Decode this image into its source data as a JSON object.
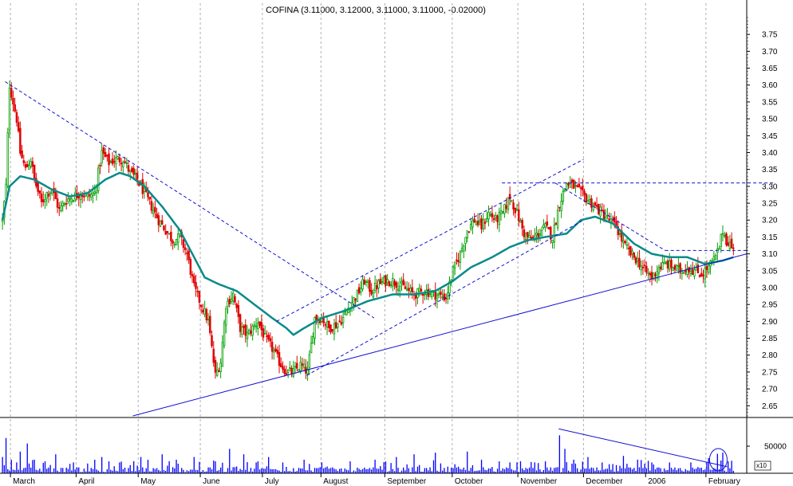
{
  "chart_data": [
    {
      "type": "candlestick",
      "title": "COFINA (3.11000, 3.12000, 3.11000, 3.11000, -0.02000)",
      "ylim": [
        2.62,
        3.8
      ],
      "y_ticks": [
        "3.75",
        "3.70",
        "3.65",
        "3.60",
        "3.55",
        "3.50",
        "3.45",
        "3.40",
        "3.35",
        "3.30",
        "3.25",
        "3.20",
        "3.15",
        "3.10",
        "3.05",
        "3.00",
        "2.95",
        "2.90",
        "2.85",
        "2.80",
        "2.75",
        "2.70",
        "2.65"
      ],
      "x_ticks": [
        "March",
        "April",
        "May",
        "June",
        "July",
        "August",
        "September",
        "October",
        "November",
        "December",
        "2006",
        "February"
      ],
      "grid": "vertical dashed at month boundaries",
      "colors": {
        "up": "#00a000",
        "down": "#e00000",
        "moving_average": "#0a8a8a",
        "trendline": "#1010d0",
        "volume": "#0000ff",
        "grid": "#b0b0b0"
      },
      "moving_average_anchors": [
        [
          0,
          3.2
        ],
        [
          4,
          3.3
        ],
        [
          10,
          3.33
        ],
        [
          18,
          3.32
        ],
        [
          28,
          3.29
        ],
        [
          38,
          3.27
        ],
        [
          48,
          3.28
        ],
        [
          58,
          3.32
        ],
        [
          66,
          3.34
        ],
        [
          72,
          3.33
        ],
        [
          80,
          3.3
        ],
        [
          90,
          3.24
        ],
        [
          100,
          3.17
        ],
        [
          108,
          3.09
        ],
        [
          114,
          3.03
        ],
        [
          122,
          3.01
        ],
        [
          132,
          2.99
        ],
        [
          142,
          2.95
        ],
        [
          152,
          2.91
        ],
        [
          160,
          2.88
        ],
        [
          164,
          2.86
        ],
        [
          170,
          2.88
        ],
        [
          180,
          2.91
        ],
        [
          192,
          2.93
        ],
        [
          206,
          2.96
        ],
        [
          220,
          2.98
        ],
        [
          232,
          2.98
        ],
        [
          244,
          2.99
        ],
        [
          254,
          3.02
        ],
        [
          264,
          3.06
        ],
        [
          276,
          3.09
        ],
        [
          286,
          3.12
        ],
        [
          296,
          3.14
        ],
        [
          306,
          3.15
        ],
        [
          318,
          3.16
        ],
        [
          326,
          3.2
        ],
        [
          334,
          3.21
        ],
        [
          344,
          3.19
        ],
        [
          356,
          3.13
        ],
        [
          366,
          3.1
        ],
        [
          376,
          3.09
        ],
        [
          386,
          3.09
        ],
        [
          396,
          3.07
        ],
        [
          406,
          3.08
        ],
        [
          412,
          3.09
        ]
      ],
      "trendlines": [
        {
          "style": "dashed",
          "from": [
            2,
            3.61
          ],
          "to": [
            210,
            2.91
          ]
        },
        {
          "style": "solid",
          "from": [
            74,
            2.62
          ],
          "to": [
            420,
            3.1
          ]
        },
        {
          "style": "dashed",
          "from": [
            155,
            2.9
          ],
          "to": [
            328,
            3.38
          ]
        },
        {
          "style": "dashed",
          "from": [
            172,
            2.74
          ],
          "to": [
            328,
            3.2
          ]
        },
        {
          "style": "dashed",
          "from": [
            282,
            3.31
          ],
          "to": [
            435,
            3.31
          ]
        },
        {
          "style": "dashed",
          "from": [
            312,
            3.31
          ],
          "to": [
            374,
            3.11
          ]
        },
        {
          "style": "dashed",
          "from": [
            374,
            3.11
          ],
          "to": [
            420,
            3.11
          ]
        }
      ],
      "price_path_anchors": [
        [
          0,
          3.2
        ],
        [
          2,
          3.3
        ],
        [
          4,
          3.6
        ],
        [
          6,
          3.55
        ],
        [
          8,
          3.5
        ],
        [
          10,
          3.4
        ],
        [
          13,
          3.35
        ],
        [
          16,
          3.38
        ],
        [
          18,
          3.32
        ],
        [
          22,
          3.25
        ],
        [
          25,
          3.28
        ],
        [
          28,
          3.29
        ],
        [
          32,
          3.23
        ],
        [
          36,
          3.26
        ],
        [
          40,
          3.27
        ],
        [
          44,
          3.28
        ],
        [
          48,
          3.27
        ],
        [
          52,
          3.28
        ],
        [
          56,
          3.4
        ],
        [
          60,
          3.37
        ],
        [
          64,
          3.38
        ],
        [
          68,
          3.38
        ],
        [
          72,
          3.34
        ],
        [
          76,
          3.32
        ],
        [
          80,
          3.28
        ],
        [
          84,
          3.24
        ],
        [
          88,
          3.2
        ],
        [
          92,
          3.17
        ],
        [
          96,
          3.14
        ],
        [
          100,
          3.15
        ],
        [
          104,
          3.1
        ],
        [
          108,
          3.0
        ],
        [
          112,
          2.95
        ],
        [
          116,
          2.9
        ],
        [
          118,
          2.82
        ],
        [
          120,
          2.74
        ],
        [
          123,
          2.78
        ],
        [
          126,
          2.95
        ],
        [
          130,
          2.98
        ],
        [
          134,
          2.88
        ],
        [
          138,
          2.86
        ],
        [
          144,
          2.9
        ],
        [
          148,
          2.85
        ],
        [
          152,
          2.82
        ],
        [
          156,
          2.78
        ],
        [
          160,
          2.75
        ],
        [
          164,
          2.75
        ],
        [
          168,
          2.77
        ],
        [
          172,
          2.75
        ],
        [
          176,
          2.91
        ],
        [
          180,
          2.91
        ],
        [
          184,
          2.88
        ],
        [
          188,
          2.89
        ],
        [
          192,
          2.91
        ],
        [
          196,
          2.95
        ],
        [
          200,
          2.98
        ],
        [
          204,
          3.02
        ],
        [
          208,
          2.99
        ],
        [
          212,
          3.01
        ],
        [
          216,
          3.02
        ],
        [
          220,
          3.02
        ],
        [
          226,
          3.0
        ],
        [
          232,
          2.98
        ],
        [
          238,
          2.99
        ],
        [
          244,
          2.98
        ],
        [
          250,
          2.97
        ],
        [
          254,
          3.05
        ],
        [
          258,
          3.1
        ],
        [
          262,
          3.17
        ],
        [
          266,
          3.2
        ],
        [
          270,
          3.18
        ],
        [
          274,
          3.22
        ],
        [
          278,
          3.2
        ],
        [
          282,
          3.22
        ],
        [
          286,
          3.27
        ],
        [
          290,
          3.22
        ],
        [
          294,
          3.16
        ],
        [
          298,
          3.14
        ],
        [
          302,
          3.16
        ],
        [
          306,
          3.18
        ],
        [
          310,
          3.15
        ],
        [
          314,
          3.25
        ],
        [
          318,
          3.31
        ],
        [
          322,
          3.3
        ],
        [
          326,
          3.28
        ],
        [
          330,
          3.26
        ],
        [
          334,
          3.24
        ],
        [
          338,
          3.22
        ],
        [
          342,
          3.2
        ],
        [
          346,
          3.18
        ],
        [
          350,
          3.13
        ],
        [
          354,
          3.1
        ],
        [
          358,
          3.08
        ],
        [
          362,
          3.05
        ],
        [
          366,
          3.03
        ],
        [
          370,
          3.06
        ],
        [
          374,
          3.07
        ],
        [
          378,
          3.06
        ],
        [
          382,
          3.05
        ],
        [
          386,
          3.06
        ],
        [
          390,
          3.05
        ],
        [
          394,
          3.04
        ],
        [
          398,
          3.06
        ],
        [
          402,
          3.09
        ],
        [
          404,
          3.12
        ],
        [
          406,
          3.17
        ],
        [
          408,
          3.14
        ],
        [
          410,
          3.13
        ],
        [
          412,
          3.11
        ]
      ]
    },
    {
      "type": "bar",
      "title": "",
      "y_ticks": [
        "50000"
      ],
      "multiplier_label": "x10",
      "ylim": [
        0,
        100000
      ],
      "x_ticks": [
        "March",
        "April",
        "May",
        "June",
        "July",
        "August",
        "September",
        "October",
        "November",
        "December",
        "2006",
        "February"
      ],
      "spikes": [
        [
          0,
          30000
        ],
        [
          2,
          65000
        ],
        [
          5,
          25000
        ],
        [
          8,
          20000
        ],
        [
          10,
          40000
        ],
        [
          14,
          55000
        ],
        [
          18,
          25000
        ],
        [
          24,
          22000
        ],
        [
          30,
          35000
        ],
        [
          40,
          20000
        ],
        [
          48,
          18000
        ],
        [
          52,
          25000
        ],
        [
          56,
          30000
        ],
        [
          60,
          22000
        ],
        [
          66,
          20000
        ],
        [
          72,
          15000
        ],
        [
          78,
          30000
        ],
        [
          82,
          25000
        ],
        [
          90,
          35000
        ],
        [
          98,
          25000
        ],
        [
          108,
          30000
        ],
        [
          120,
          22000
        ],
        [
          128,
          45000
        ],
        [
          136,
          35000
        ],
        [
          144,
          22000
        ],
        [
          150,
          30000
        ],
        [
          158,
          20000
        ],
        [
          170,
          25000
        ],
        [
          180,
          20000
        ],
        [
          196,
          22000
        ],
        [
          210,
          25000
        ],
        [
          222,
          30000
        ],
        [
          232,
          35000
        ],
        [
          244,
          38000
        ],
        [
          262,
          40000
        ],
        [
          270,
          25000
        ],
        [
          280,
          22000
        ],
        [
          290,
          20000
        ],
        [
          300,
          20000
        ],
        [
          306,
          22000
        ],
        [
          314,
          70000
        ],
        [
          317,
          45000
        ],
        [
          322,
          25000
        ],
        [
          330,
          30000
        ],
        [
          338,
          20000
        ],
        [
          350,
          32000
        ],
        [
          358,
          25000
        ],
        [
          366,
          20000
        ],
        [
          376,
          20000
        ],
        [
          388,
          20000
        ],
        [
          398,
          28000
        ],
        [
          403,
          36000
        ],
        [
          406,
          38000
        ],
        [
          409,
          22000
        ]
      ],
      "trendlines": [
        {
          "style": "solid",
          "from": [
            314,
            82000
          ],
          "to": [
            409,
            12000
          ]
        }
      ],
      "annotations": [
        {
          "shape": "ellipse",
          "center": [
            404,
            25000
          ]
        }
      ]
    }
  ]
}
